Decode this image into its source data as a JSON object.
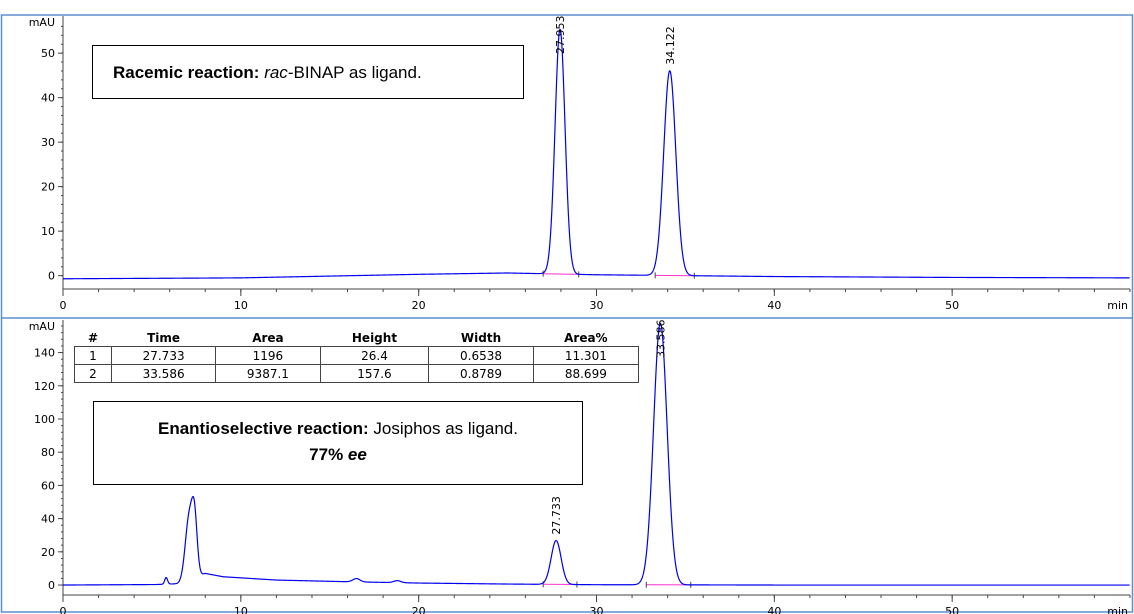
{
  "chart_data": [
    {
      "type": "line",
      "title": "",
      "xlabel": "min",
      "ylabel": "mAU",
      "xlim": [
        0,
        60
      ],
      "ylim": [
        -3,
        57
      ],
      "x_ticks": [
        "0",
        "10",
        "20",
        "30",
        "40",
        "50"
      ],
      "y_ticks": [
        "0",
        "10",
        "20",
        "30",
        "40",
        "50"
      ],
      "baseline": [
        [
          0,
          -0.7
        ],
        [
          10,
          -0.5
        ],
        [
          20,
          0.3
        ],
        [
          25,
          0.6
        ],
        [
          30,
          0.2
        ],
        [
          40,
          -0.2
        ],
        [
          50,
          -0.4
        ],
        [
          60,
          -0.5
        ]
      ],
      "peaks": [
        {
          "label": "27.953",
          "rt": 27.95,
          "height": 55,
          "sigma": 0.28
        },
        {
          "label": "34.122",
          "rt": 34.12,
          "height": 46,
          "sigma": 0.34
        }
      ],
      "integration_segments": [
        [
          27.0,
          29.0
        ],
        [
          33.3,
          35.5
        ]
      ],
      "annotation": {
        "bold": "Racemic reaction:",
        "italic": "rac",
        "rest": "-BINAP as ligand."
      }
    },
    {
      "type": "line",
      "title": "",
      "xlabel": "min",
      "ylabel": "mAU",
      "xlim": [
        0,
        60
      ],
      "ylim": [
        -6,
        156
      ],
      "x_ticks": [
        "0",
        "10",
        "20",
        "30",
        "40",
        "50"
      ],
      "y_ticks": [
        "0",
        "20",
        "40",
        "60",
        "80",
        "100",
        "120",
        "140"
      ],
      "baseline": [
        [
          0,
          0
        ],
        [
          5.2,
          0.3
        ],
        [
          6.5,
          0.8
        ],
        [
          8,
          7
        ],
        [
          9,
          5
        ],
        [
          12,
          3
        ],
        [
          16,
          2
        ],
        [
          20,
          1.2
        ],
        [
          25,
          0.6
        ],
        [
          30,
          0.2
        ],
        [
          40,
          0
        ],
        [
          50,
          0
        ],
        [
          60,
          0
        ]
      ],
      "peaks": [
        {
          "label": "27.733",
          "rt": 27.73,
          "height": 26.4,
          "sigma": 0.28
        },
        {
          "label": "33.586",
          "rt": 33.59,
          "height": 157.6,
          "sigma": 0.38
        }
      ],
      "impurity_peaks": [
        {
          "rt": 5.8,
          "height": 4,
          "sigma": 0.08
        },
        {
          "rt": 7.1,
          "height": 38,
          "sigma": 0.22
        },
        {
          "rt": 7.4,
          "height": 30,
          "sigma": 0.15
        },
        {
          "rt": 16.5,
          "height": 2,
          "sigma": 0.2
        },
        {
          "rt": 18.8,
          "height": 1.2,
          "sigma": 0.2
        }
      ],
      "integration_segments": [
        [
          27.0,
          28.9
        ],
        [
          32.8,
          35.3
        ]
      ],
      "table": {
        "columns": [
          "#",
          "Time",
          "Area",
          "Height",
          "Width",
          "Area%"
        ],
        "rows": [
          [
            "1",
            "27.733",
            "1196",
            "26.4",
            "0.6538",
            "11.301"
          ],
          [
            "2",
            "33.586",
            "9387.1",
            "157.6",
            "0.8789",
            "88.699"
          ]
        ]
      },
      "annotation": {
        "bold": "Enantioselective reaction:",
        "rest": " Josiphos as ligand.",
        "ee_bold": "77%",
        "ee_italic": "ee"
      }
    }
  ],
  "colors": {
    "trace": "#0000ee",
    "integration": "#ff33cc",
    "axis": "#444444",
    "frame": "#5b8fd1",
    "annotation_frame": "#000000"
  }
}
